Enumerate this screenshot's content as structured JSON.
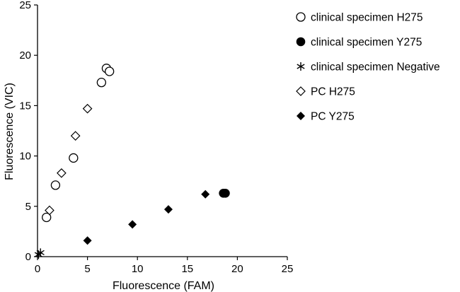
{
  "chart_data": {
    "type": "scatter",
    "title": "",
    "xlabel": "Fluorescence (FAM)",
    "ylabel": "Fluorescence (VIC)",
    "xlim": [
      0,
      25
    ],
    "ylim": [
      0,
      25
    ],
    "xticks": [
      0,
      5,
      10,
      15,
      20,
      25
    ],
    "yticks": [
      0,
      5,
      10,
      15,
      20,
      25
    ],
    "grid": false,
    "legend_position": "right",
    "series": [
      {
        "name": "clinical specimen H275",
        "marker": "open-circle",
        "points": [
          [
            0.9,
            3.9
          ],
          [
            1.8,
            7.1
          ],
          [
            3.6,
            9.8
          ],
          [
            6.4,
            17.3
          ],
          [
            6.9,
            18.7
          ],
          [
            7.2,
            18.4
          ]
        ]
      },
      {
        "name": "clinical specimen Y275",
        "marker": "filled-circle",
        "points": [
          [
            18.6,
            6.3
          ],
          [
            18.8,
            6.3
          ]
        ]
      },
      {
        "name": "clinical specimen Negative",
        "marker": "asterisk",
        "points": [
          [
            0.1,
            0.2
          ],
          [
            0.3,
            0.4
          ]
        ]
      },
      {
        "name": "PC H275",
        "marker": "open-diamond",
        "points": [
          [
            1.2,
            4.6
          ],
          [
            2.4,
            8.3
          ],
          [
            3.8,
            12.0
          ],
          [
            5.0,
            14.7
          ]
        ]
      },
      {
        "name": "PC Y275",
        "marker": "filled-diamond",
        "points": [
          [
            5.0,
            1.6
          ],
          [
            9.5,
            3.2
          ],
          [
            13.1,
            4.7
          ],
          [
            16.8,
            6.2
          ]
        ]
      }
    ]
  }
}
